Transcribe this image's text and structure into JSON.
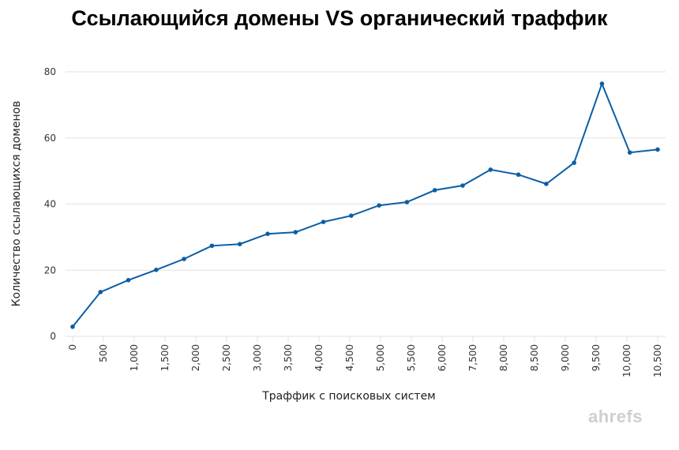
{
  "chart_data": {
    "type": "line",
    "title": "Ссылающийся домены VS органический траффик",
    "xlabel": "Траффик с поисковых систем",
    "ylabel": "Количество ссылающихся доменов",
    "xlim": [
      0,
      10500
    ],
    "ylim": [
      0,
      80
    ],
    "y_ticks": [
      "0",
      "20",
      "40",
      "60",
      "80"
    ],
    "x_tick_labels": [
      "0",
      "500",
      "1,000",
      "1,500",
      "2,000",
      "2,500",
      "3,000",
      "3,500",
      "4,000",
      "4,500",
      "5,000",
      "5,500",
      "6,000",
      "7,500",
      "8,000",
      "8,500",
      "9,000",
      "9,500",
      "10,000",
      "10,500"
    ],
    "grid": true,
    "legend": "none",
    "series": [
      {
        "color": "#0b5ea4",
        "x": [
          0,
          500,
          1000,
          1500,
          2000,
          2500,
          3000,
          3500,
          4000,
          4500,
          5000,
          5500,
          6000,
          6500,
          7000,
          7500,
          8000,
          8500,
          9000,
          9500,
          10000,
          10500
        ],
        "y": [
          2.9,
          13.4,
          17.0,
          20.1,
          23.4,
          27.4,
          27.9,
          31.0,
          31.5,
          34.6,
          36.5,
          39.6,
          40.6,
          44.2,
          45.6,
          50.4,
          48.9,
          46.1,
          52.5,
          76.4,
          55.6,
          56.5
        ]
      }
    ]
  },
  "watermark": "ahrefs"
}
